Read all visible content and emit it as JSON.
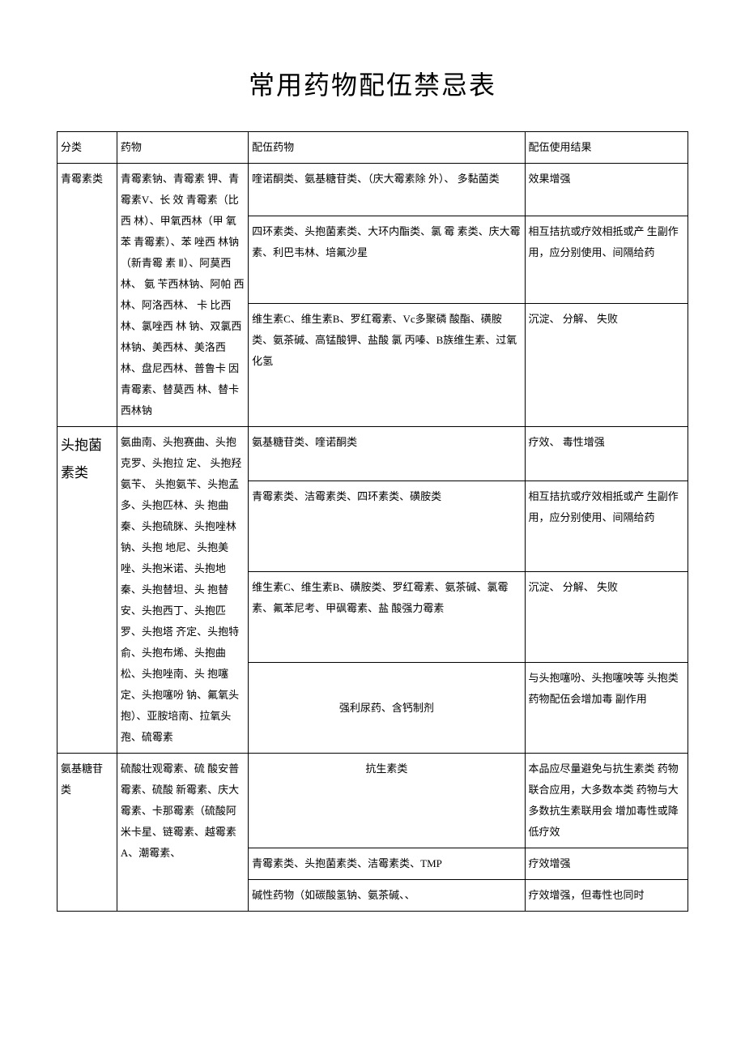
{
  "title": "常用药物配伍禁忌表",
  "headers": {
    "category": "分类",
    "drug": "药物",
    "combo": "配伍药物",
    "result": "配伍使用结果"
  },
  "rows": [
    {
      "cat": "青霉素类",
      "drug": "青霉素钠、青霉素  钾、青霉素V、长 效  青霉素（比西  林）、甲氧西林（甲  氧苯  青霉素）、苯  唑西  林钠（新青霉    素  Ⅱ）、阿莫西林、  氨  苄西林钠、阿帕  西  林、阿洛西林、  卡  比西林、氯唑西  林  钠、双氯西林钠、美西林、美洛西林、盘尼西林、普鲁卡  因青霉素、替莫西  林、替卡西林钠",
      "combos": [
        {
          "combo": "喹诺酮类、氨基糖苷类、（庆大霉素除  外）、  多黏菌类",
          "result": "效果增强"
        },
        {
          "combo": "四环素类、头抱菌素类、大环内酯类、氯  霉  素类、庆大霉素、利巴韦林、培氟沙星",
          "result": "相互拮抗或疗效相抵或产  生副作用，应分别使用、间隔给药"
        },
        {
          "combo": "维生素C、维生素B、罗红霉素、Vc多聚磷  酸酯、磺胺类、氨茶碱、高锰酸钾、盐酸  氯  丙嗪、B族维生素、过氧化氢",
          "result": "沉淀、 分解、 失败"
        }
      ]
    },
    {
      "cat": "头抱菌素类",
      "drug": "氨曲南、头抱赛曲、头抱克罗、头抱拉  定、 头抱羟氨苄、  头抱氨苄、头抱孟  多、头抱匹林、头  抱曲秦、头抱硫脒、头抱唑林钠、头抱  地尼、头抱美唑、头抱米诺、头抱地  秦、头抱替坦、头  抱替安、头抱西丁、头抱匹罗、头抱塔  齐定、头抱特俞、头抱布烯、头抱曲  松、头抱唑南、头  抱噻定、头抱噻吩  钠、氟氧头抱）、亚胺培南、拉氧头  孢、硫霉素",
      "combos": [
        {
          "combo": "氨基糖苷类、喹诺酮类",
          "result": "疗效、 毒性增强"
        },
        {
          "combo": "青霉素类、洁霉素类、四环素类、磺胺类",
          "result": "相互拮抗或疗效相抵或产  生副作用，应分别使用、间隔给药"
        },
        {
          "combo": "维生素C、维生素B、磺胺类、罗红霉素、氨茶碱、氯霉素、氟苯尼考、甲砜霉素、盐  酸强力霉素",
          "result": "沉淀、 分解、 失败"
        },
        {
          "combo": "强利尿药、含钙制剂",
          "result": "与头抱噻吩、头抱噻咉等  头抱类药物配伍会增加毒  副作用"
        }
      ]
    },
    {
      "cat": "氨基糖苷  类",
      "drug": "硫酸壮观霉素、硫  酸安普霉素、硫酸  新霉素、庆大霉素、卡那霉素（硫酸阿  米卡星、链霉素、越霉素A、潮霉素、",
      "combos": [
        {
          "combo": "抗生素类",
          "result": "本品应尽量避免与抗生素类  药物联合应用，大多数本类  药物与大多数抗生素联用会  增加毒性或降低疗效"
        },
        {
          "combo": "青霉素类、头抱菌素类、洁霉素类、TMP",
          "result": "疗效增强"
        },
        {
          "combo": "碱性药物（如碳酸氢钠、氨茶碱、、",
          "result": "疗效增强，但毒性也同时"
        }
      ]
    }
  ]
}
